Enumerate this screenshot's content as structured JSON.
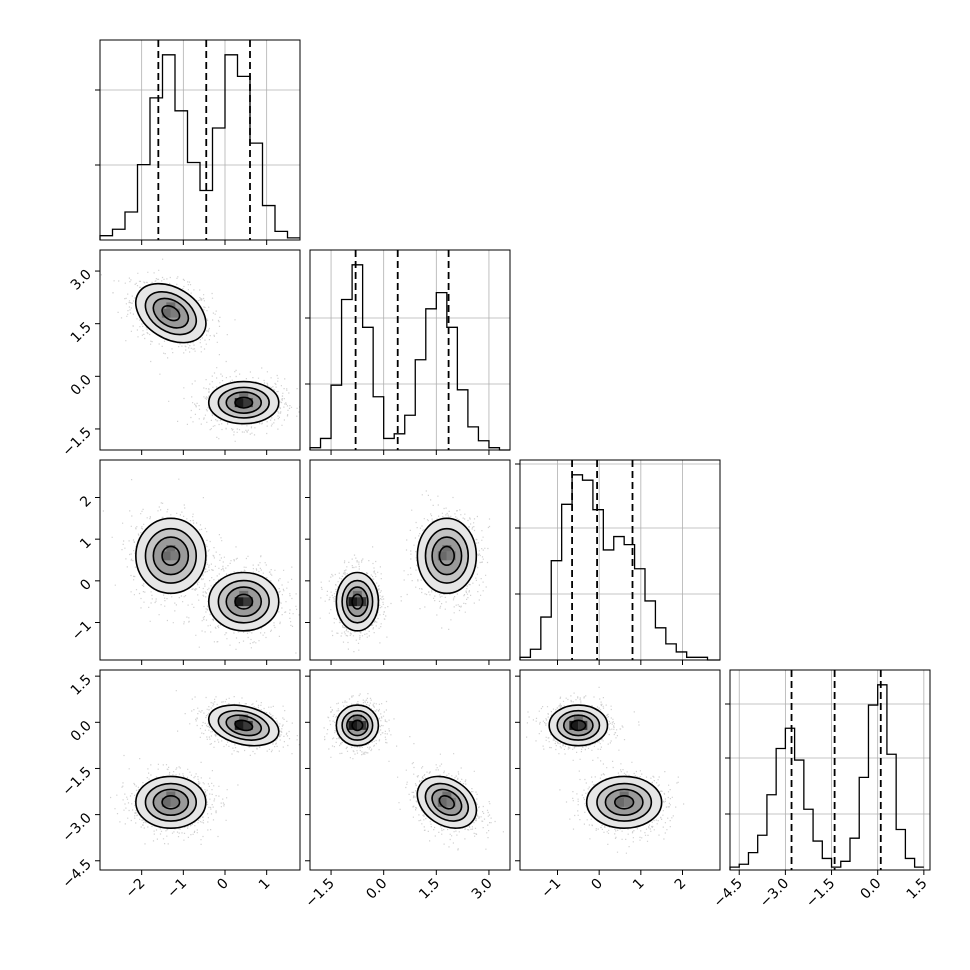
{
  "chart_data": {
    "type": "corner",
    "grid": true,
    "parameters": [
      {
        "range": [
          -3.0,
          1.8
        ],
        "ticks": [
          -2,
          -1,
          0,
          1
        ],
        "tick_labels": [
          "−2",
          "−1",
          "0",
          "1"
        ],
        "quantiles": [
          -1.6,
          -0.45,
          0.6
        ],
        "hist_edges": [
          -3.0,
          -2.7,
          -2.4,
          -2.1,
          -1.8,
          -1.5,
          -1.2,
          -0.9,
          -0.6,
          -0.3,
          0.0,
          0.3,
          0.6,
          0.9,
          1.2,
          1.5,
          1.8
        ],
        "hist_counts": [
          0.2,
          0.5,
          1.3,
          3.5,
          6.6,
          8.6,
          6.0,
          3.6,
          2.3,
          5.2,
          8.6,
          7.6,
          4.5,
          1.6,
          0.4,
          0.1
        ]
      },
      {
        "range": [
          -2.1,
          3.6
        ],
        "ticks": [
          -1.5,
          0.0,
          1.5,
          3.0
        ],
        "tick_labels": [
          "−1.5",
          "0.0",
          "1.5",
          "3.0"
        ],
        "quantiles": [
          -0.8,
          0.4,
          1.85
        ],
        "hist_edges": [
          -2.1,
          -1.8,
          -1.5,
          -1.2,
          -0.9,
          -0.6,
          -0.3,
          0.0,
          0.3,
          0.6,
          0.9,
          1.2,
          1.5,
          1.8,
          2.1,
          2.4,
          2.7,
          3.0,
          3.3,
          3.6
        ],
        "hist_counts": [
          0.1,
          0.5,
          2.8,
          6.5,
          8.0,
          5.3,
          2.3,
          0.5,
          0.7,
          1.5,
          3.9,
          6.1,
          6.8,
          5.3,
          2.6,
          1.0,
          0.4,
          0.1,
          0.0
        ]
      },
      {
        "range": [
          -1.9,
          2.9
        ],
        "ticks": [
          -1,
          0,
          1,
          2
        ],
        "tick_labels": [
          "−1",
          "0",
          "1",
          "2"
        ],
        "quantiles": [
          -0.65,
          -0.05,
          0.8
        ],
        "hist_edges": [
          -1.9,
          -1.65,
          -1.4,
          -1.15,
          -0.9,
          -0.65,
          -0.4,
          -0.15,
          0.1,
          0.35,
          0.6,
          0.85,
          1.1,
          1.35,
          1.6,
          1.85,
          2.1,
          2.35,
          2.6,
          2.9
        ],
        "hist_counts": [
          0.1,
          0.4,
          1.6,
          3.7,
          5.8,
          6.9,
          6.7,
          5.6,
          4.1,
          4.6,
          4.3,
          3.4,
          2.2,
          1.2,
          0.6,
          0.3,
          0.1,
          0.1,
          0.0
        ]
      },
      {
        "range": [
          -4.8,
          1.7
        ],
        "ticks": [
          -4.5,
          -3.0,
          -1.5,
          0.0,
          1.5
        ],
        "tick_labels": [
          "−4.5",
          "−3.0",
          "−1.5",
          "0.0",
          "1.5"
        ],
        "quantiles": [
          -2.8,
          -1.4,
          0.1
        ],
        "hist_edges": [
          -4.8,
          -4.5,
          -4.2,
          -3.9,
          -3.6,
          -3.3,
          -3.0,
          -2.7,
          -2.4,
          -2.1,
          -1.8,
          -1.5,
          -1.2,
          -0.9,
          -0.6,
          -0.3,
          0.0,
          0.3,
          0.6,
          0.9,
          1.2,
          1.5
        ],
        "hist_counts": [
          0.1,
          0.2,
          0.6,
          1.2,
          2.6,
          4.2,
          4.9,
          3.8,
          2.1,
          1.0,
          0.4,
          0.1,
          0.3,
          1.1,
          3.2,
          5.7,
          6.4,
          4.0,
          1.4,
          0.4,
          0.1
        ]
      }
    ],
    "diag_y_ticks": [
      [
        0.375,
        0.75
      ],
      [
        0.33,
        0.66
      ],
      [
        0.33,
        0.66,
        0.98
      ],
      [
        0.28,
        0.56,
        0.83
      ]
    ],
    "modes": [
      {
        "center": [
          -1.3,
          1.8,
          0.6,
          -2.6
        ],
        "sd": [
          0.42,
          0.42,
          0.45,
          0.42
        ],
        "corr": {
          "0-1": -0.35,
          "0-2": 0.0,
          "0-3": 0.0,
          "1-2": 0.0,
          "1-3": -0.3,
          "2-3": 0.0
        }
      },
      {
        "center": [
          0.45,
          -0.75,
          -0.5,
          -0.1
        ],
        "sd": [
          0.42,
          0.3,
          0.35,
          0.33
        ],
        "corr": {
          "0-1": 0.0,
          "0-2": 0.0,
          "0-3": -0.3,
          "1-2": 0.0,
          "1-3": 0.0,
          "2-3": 0.0
        }
      }
    ],
    "contour_levels": [
      0.5,
      1.0,
      1.5
    ]
  }
}
